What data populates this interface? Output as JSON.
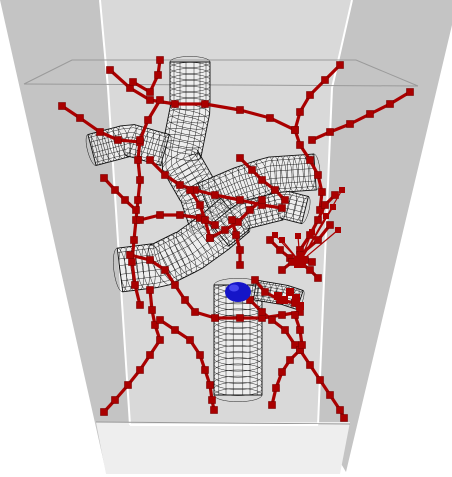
{
  "colors": {
    "background": "#ffffff",
    "box_wall": "#c4c4c4",
    "box_wall_light": "#d9d9d9",
    "box_floor": "#eeeeee",
    "box_edge": "#ffffff",
    "box_outline": "#9a9a9a",
    "wireframe": "#111111",
    "wire_fill": "#ffffff",
    "branch": "#aa0000",
    "branch_dark": "#7a0000",
    "sphere": "#1515c8",
    "sphere_highlight": "#5a5aff"
  },
  "icons": {
    "container": "transparent-box-icon",
    "tubes": "wireframe-tube-icon",
    "network": "branching-network-icon",
    "marker": "blue-sphere-icon"
  }
}
